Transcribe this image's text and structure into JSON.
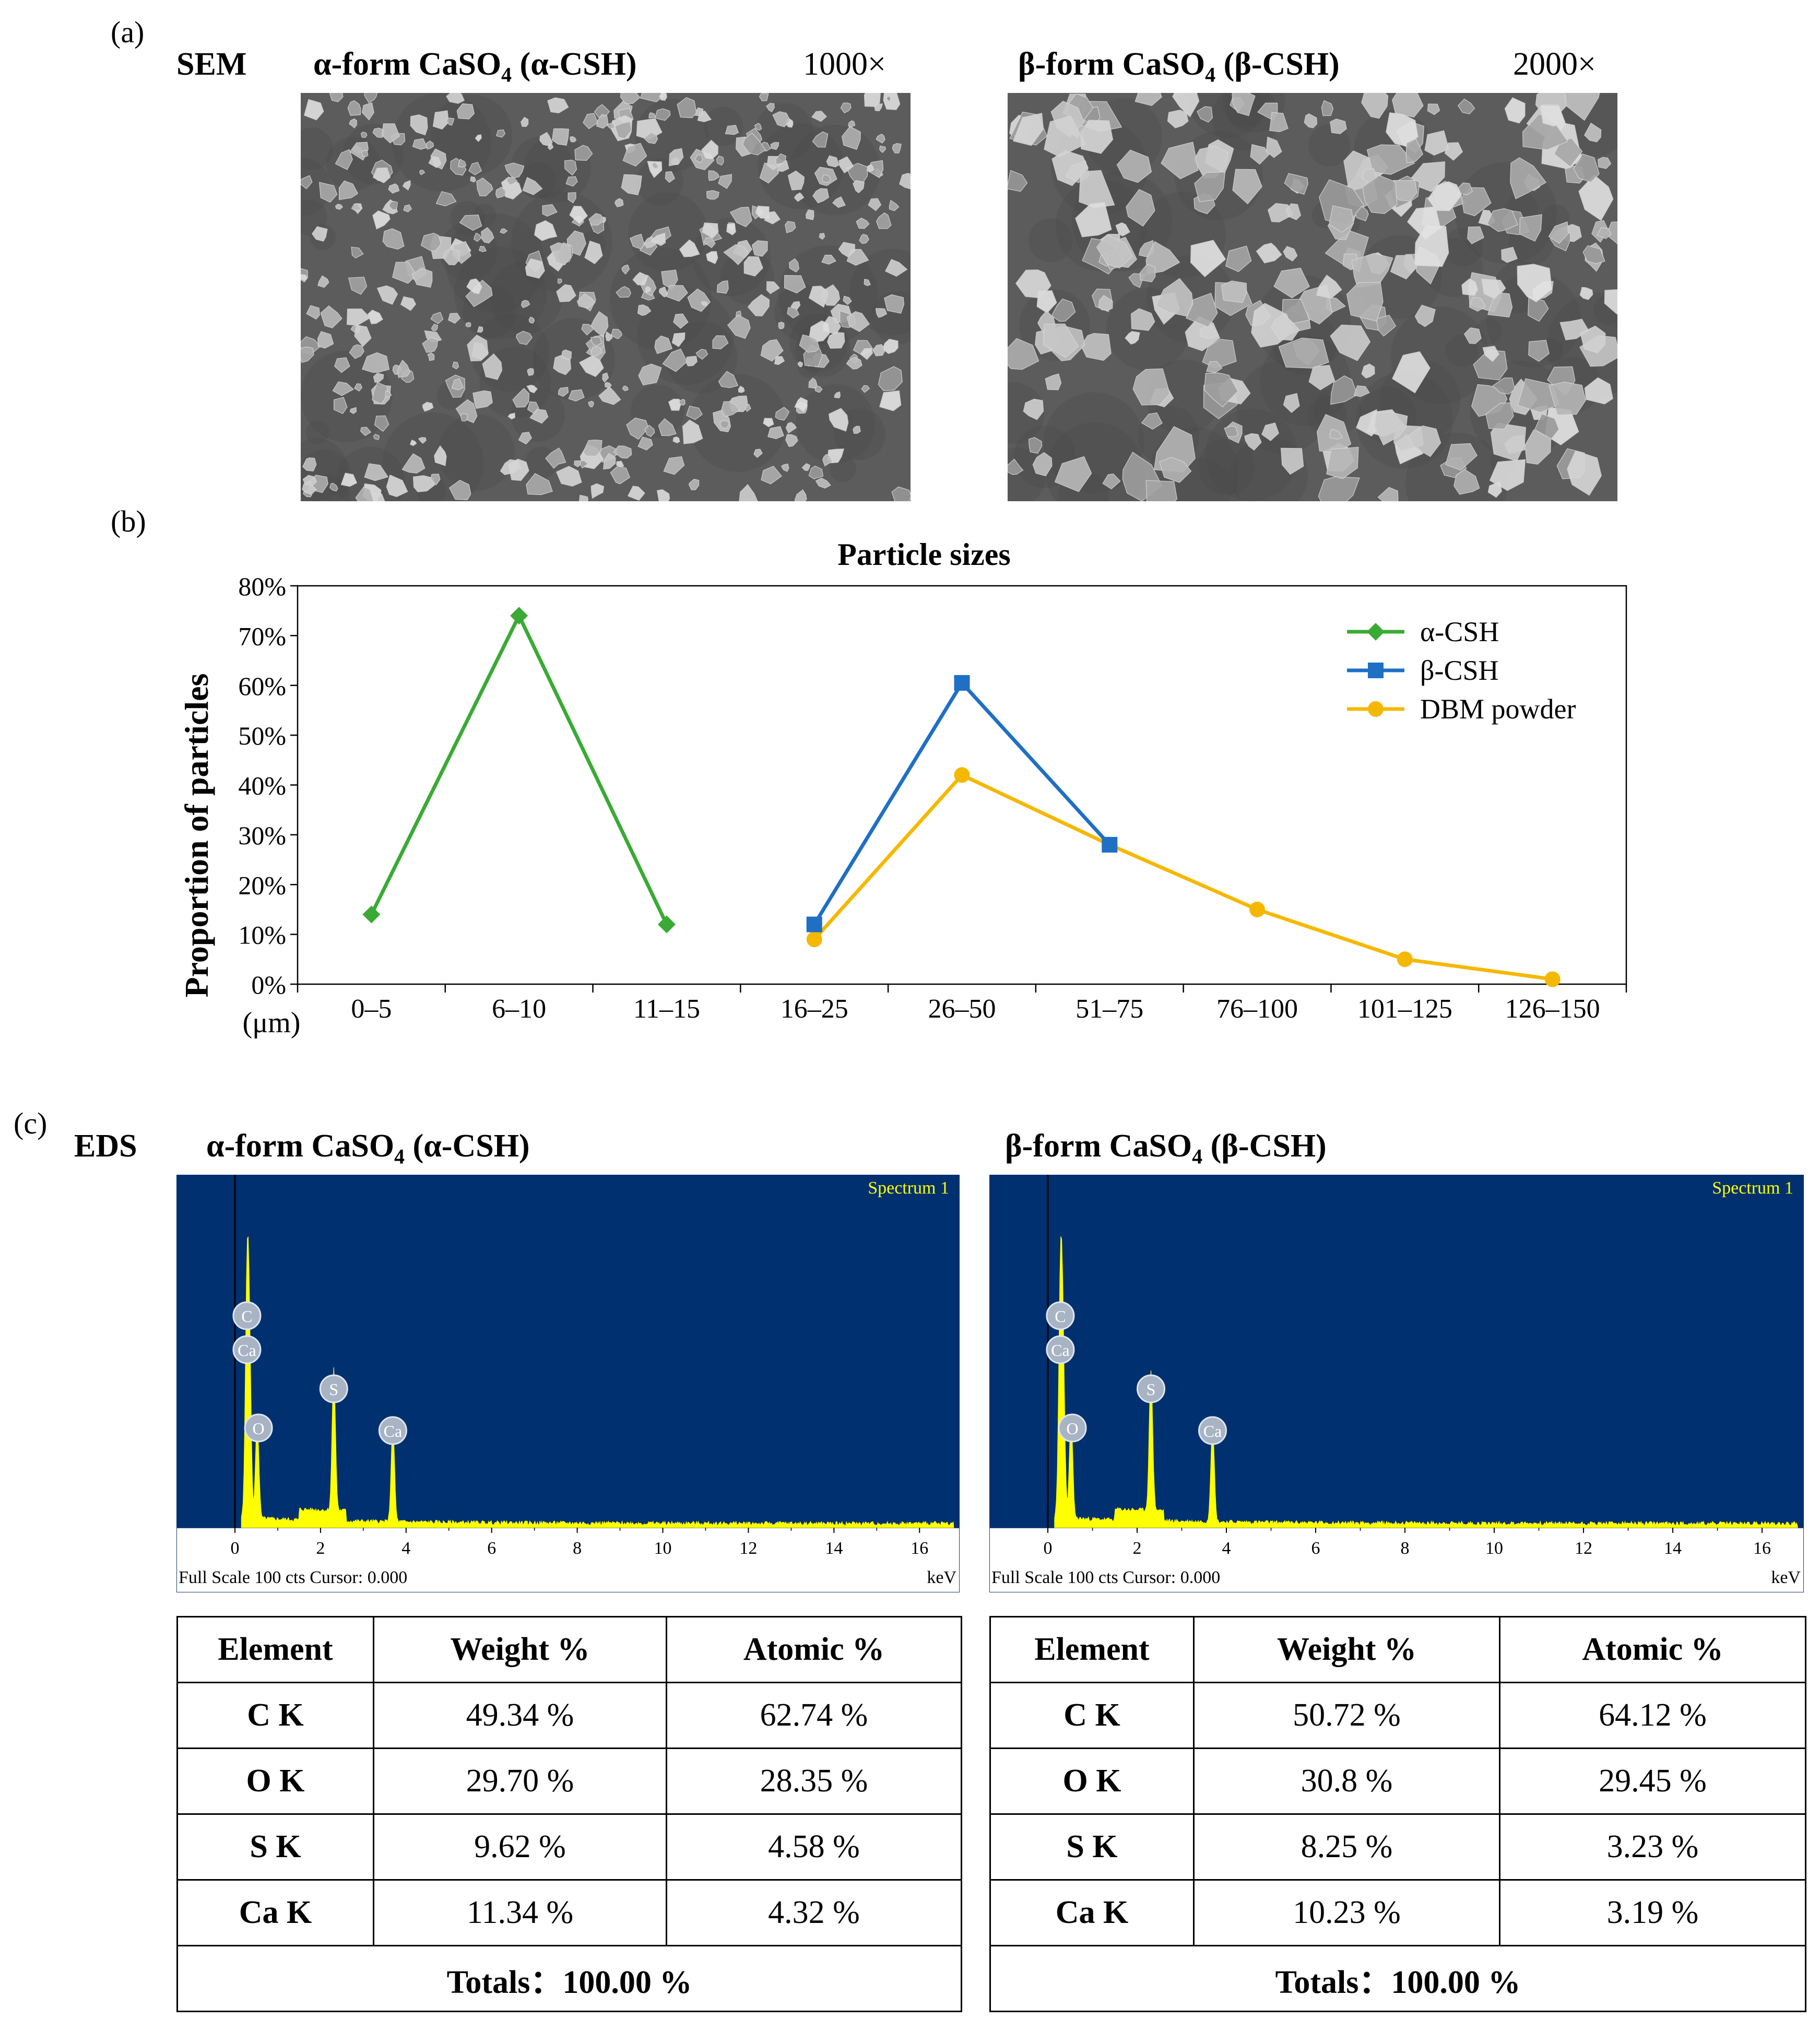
{
  "panel_a": {
    "label": "(a)",
    "method": "SEM",
    "left": {
      "title_pre": "α-form CaSO",
      "title_sub": "4",
      "title_post": " (α-CSH)",
      "magnification": "1000×"
    },
    "right": {
      "title_pre": "β-form CaSO",
      "title_sub": "4",
      "title_post": " (β-CSH)",
      "magnification": "2000×"
    }
  },
  "panel_b": {
    "label": "(b)"
  },
  "chart_data": {
    "type": "line",
    "title": "Particle sizes",
    "ylabel": "Proportion of particles",
    "xlabel": "(μm)",
    "categories": [
      "0–5",
      "6–10",
      "11–15",
      "16–25",
      "26–50",
      "51–75",
      "76–100",
      "101–125",
      "126–150"
    ],
    "yticks": [
      "0%",
      "10%",
      "20%",
      "30%",
      "40%",
      "50%",
      "60%",
      "70%",
      "80%"
    ],
    "ylim": [
      0,
      80
    ],
    "legend_position": "top-right",
    "series": [
      {
        "name": "α-CSH",
        "color": "#3aaa35",
        "marker": "diamond",
        "values": [
          14,
          74,
          12,
          null,
          null,
          null,
          null,
          null,
          null
        ]
      },
      {
        "name": "β-CSH",
        "color": "#1f6fc5",
        "marker": "square",
        "values": [
          null,
          null,
          null,
          12,
          60.5,
          28,
          null,
          null,
          null
        ]
      },
      {
        "name": "DBM powder",
        "color": "#f5b800",
        "marker": "circle",
        "values": [
          null,
          null,
          null,
          9,
          42,
          28,
          15,
          5,
          1
        ]
      }
    ]
  },
  "panel_c": {
    "label": "(c)",
    "method": "EDS",
    "left": {
      "title_pre": "α-form CaSO",
      "title_sub": "4",
      "title_post": " (α-CSH)"
    },
    "right": {
      "title_pre": "β-form CaSO",
      "title_sub": "4",
      "title_post": " (β-CSH)"
    },
    "spectrum": {
      "label": "Spectrum 1",
      "footer": "Full Scale 100 cts Cursor: 0.000",
      "unit": "keV",
      "xticks": [
        "0",
        "2",
        "4",
        "6",
        "8",
        "10",
        "12",
        "14",
        "16"
      ],
      "peak_labels": [
        "C",
        "Ca",
        "O",
        "S",
        "Ca"
      ],
      "colors": {
        "background": "#003070",
        "trace": "#ffff00",
        "label": "#ffff00"
      }
    },
    "table_headers": [
      "Element",
      "Weight %",
      "Atomic %"
    ],
    "left_table": {
      "rows": [
        {
          "element": "C K",
          "weight": "49.34 %",
          "atomic": "62.74 %"
        },
        {
          "element": "O K",
          "weight": "29.70 %",
          "atomic": "28.35 %"
        },
        {
          "element": "S K",
          "weight": "9.62 %",
          "atomic": "4.58 %"
        },
        {
          "element": "Ca K",
          "weight": "11.34 %",
          "atomic": "4.32 %"
        }
      ],
      "totals": "Totals：100.00 %"
    },
    "right_table": {
      "rows": [
        {
          "element": "C K",
          "weight": "50.72 %",
          "atomic": "64.12 %"
        },
        {
          "element": "O K",
          "weight": "30.8 %",
          "atomic": "29.45 %"
        },
        {
          "element": "S K",
          "weight": "8.25 %",
          "atomic": "3.23 %"
        },
        {
          "element": "Ca K",
          "weight": "10.23 %",
          "atomic": "3.19 %"
        }
      ],
      "totals": "Totals：100.00 %"
    }
  }
}
